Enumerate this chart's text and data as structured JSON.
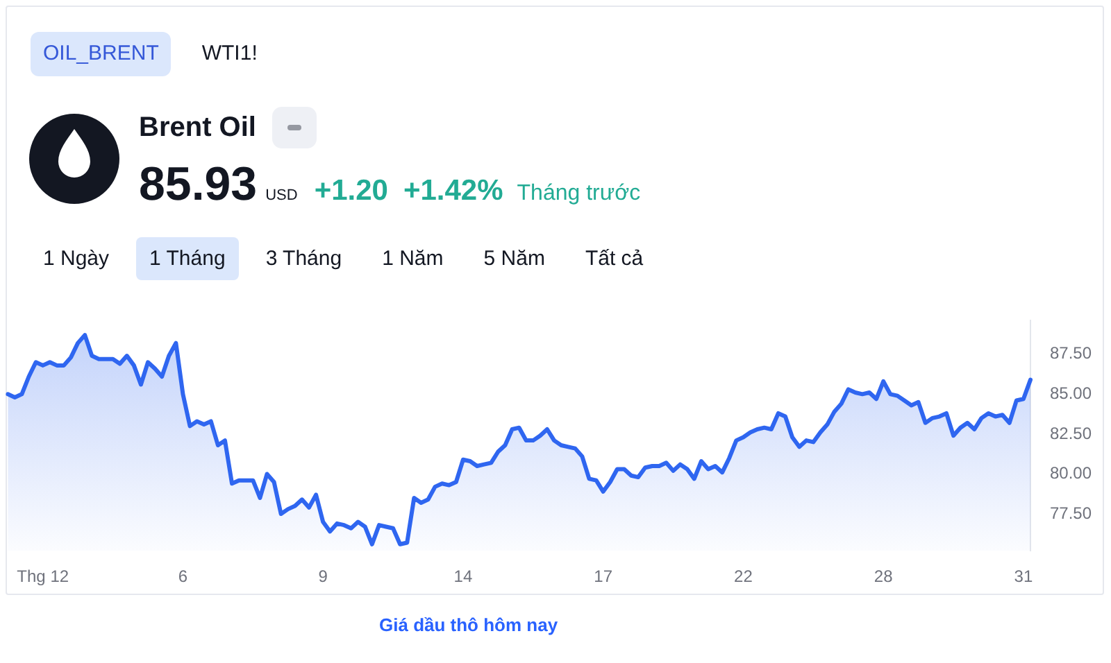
{
  "chart_data": {
    "type": "area",
    "title": "Brent Oil",
    "annotations": [
      "OIL_BRENT",
      "WTI1!",
      "85.93",
      "USD",
      "+1.20",
      "+1.42%",
      "Tháng trước",
      "1 Ngày",
      "1 Tháng",
      "3 Tháng",
      "1 Năm",
      "5 Năm",
      "Tất cả",
      "Giá dầu thô hôm nay"
    ],
    "categories": [
      null,
      null,
      null,
      null,
      null,
      "Thg 12",
      null,
      null,
      null,
      null,
      null,
      null,
      null,
      null,
      null,
      null,
      null,
      null,
      null,
      null,
      null,
      null,
      null,
      null,
      null,
      "6",
      null,
      null,
      null,
      null,
      null,
      null,
      null,
      null,
      null,
      null,
      null,
      null,
      null,
      null,
      null,
      null,
      null,
      null,
      null,
      "9",
      null,
      null,
      null,
      null,
      null,
      null,
      null,
      null,
      null,
      null,
      null,
      null,
      null,
      null,
      null,
      null,
      null,
      null,
      null,
      "14",
      null,
      null,
      null,
      null,
      null,
      null,
      null,
      null,
      null,
      null,
      null,
      null,
      null,
      null,
      null,
      null,
      null,
      null,
      null,
      "17",
      null,
      null,
      null,
      null,
      null,
      null,
      null,
      null,
      null,
      null,
      null,
      null,
      null,
      null,
      null,
      null,
      null,
      null,
      null,
      "22",
      null,
      null,
      null,
      null,
      null,
      null,
      null,
      null,
      null,
      null,
      null,
      null,
      null,
      null,
      null,
      null,
      null,
      null,
      null,
      "28",
      null,
      null,
      null,
      null,
      null,
      null,
      null,
      null,
      null,
      null,
      null,
      null,
      null,
      null,
      null,
      null,
      null,
      null,
      null,
      "31",
      null
    ],
    "values": [
      85.0,
      84.8,
      85.0,
      86.1,
      87.0,
      86.8,
      87.0,
      86.8,
      86.8,
      87.3,
      88.2,
      88.7,
      87.4,
      87.2,
      87.2,
      87.2,
      86.9,
      87.4,
      86.8,
      85.6,
      87.0,
      86.6,
      86.1,
      87.4,
      88.2,
      85.0,
      83.0,
      83.3,
      83.1,
      83.3,
      81.8,
      82.1,
      79.4,
      79.6,
      79.6,
      79.6,
      78.5,
      80.0,
      79.5,
      77.5,
      77.8,
      78.0,
      78.4,
      77.9,
      78.7,
      77.0,
      76.4,
      76.9,
      76.8,
      76.6,
      77.0,
      76.7,
      75.6,
      76.8,
      76.7,
      76.6,
      75.6,
      75.7,
      78.5,
      78.2,
      78.4,
      79.2,
      79.4,
      79.3,
      79.5,
      80.9,
      80.8,
      80.5,
      80.6,
      80.7,
      81.4,
      81.8,
      82.8,
      82.9,
      82.1,
      82.1,
      82.4,
      82.8,
      82.1,
      81.8,
      81.7,
      81.6,
      81.1,
      79.7,
      79.6,
      78.9,
      79.5,
      80.3,
      80.3,
      79.9,
      79.8,
      80.4,
      80.5,
      80.5,
      80.7,
      80.2,
      80.6,
      80.3,
      79.7,
      80.8,
      80.3,
      80.5,
      80.1,
      81.0,
      82.1,
      82.3,
      82.6,
      82.8,
      82.9,
      82.8,
      83.8,
      83.6,
      82.3,
      81.7,
      82.1,
      82.0,
      82.6,
      83.1,
      83.9,
      84.4,
      85.3,
      85.1,
      85.0,
      85.1,
      84.7,
      85.8,
      85.0,
      84.9,
      84.6,
      84.3,
      84.5,
      83.2,
      83.5,
      83.6,
      83.8,
      82.4,
      82.9,
      83.2,
      82.8,
      83.5,
      83.8,
      83.6,
      83.7,
      83.2,
      84.6,
      84.7,
      85.9
    ],
    "color": "#2f66f0",
    "ylim": [
      75.2,
      89.6
    ],
    "yticks": [
      {
        "value": 77.5,
        "label": "77.50"
      },
      {
        "value": 80,
        "label": "80.00"
      },
      {
        "value": 82.5,
        "label": "82.50"
      },
      {
        "value": 85,
        "label": "85.00"
      },
      {
        "value": 87.5,
        "label": "87.50"
      }
    ],
    "grid": false,
    "legend": false
  }
}
